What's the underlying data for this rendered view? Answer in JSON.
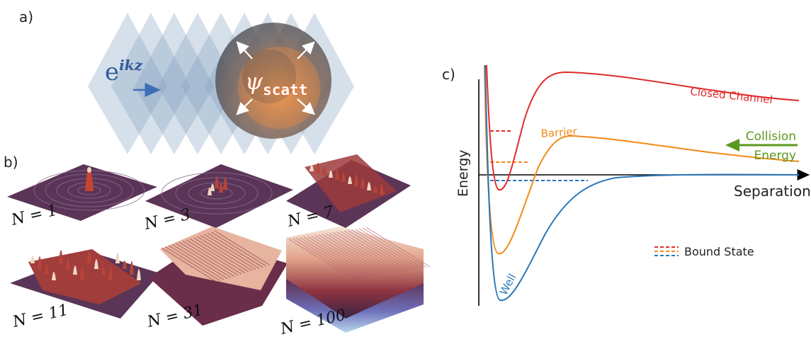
{
  "panel_a": {
    "label": "a)",
    "incoming_wave_label": "e",
    "incoming_wave_exponent": "ikz",
    "scattered_wave_label": "ψ",
    "scattered_wave_subscript": "scatt",
    "colors": {
      "planes": "#7f9fbd",
      "sphere_dark": "#4d4d52",
      "sphere_glow": "#f08a3c",
      "arrow_in": "#3d6fb6"
    }
  },
  "panel_b": {
    "label": "b)",
    "panels": [
      {
        "label": "N = 1"
      },
      {
        "label": "N = 3"
      },
      {
        "label": "N = 7"
      },
      {
        "label": "N = 11"
      },
      {
        "label": "N = 31"
      },
      {
        "label": "N = 100"
      }
    ],
    "colors": {
      "surface_dark": "#4a2a4d",
      "surface_mid": "#9c3b3a",
      "surface_light": "#f3d9cc"
    }
  },
  "panel_c": {
    "label": "c)",
    "y_axis_label": "Energy",
    "x_axis_label": "Separation",
    "curves": [
      {
        "name": "Closed Channel",
        "color": "#e02b2b"
      },
      {
        "name": "Barrier",
        "color": "#f28a17"
      },
      {
        "name": "Well",
        "color": "#2a76b8"
      }
    ],
    "collision_label_1": "Collision",
    "collision_label_2": "Energy",
    "collision_color": "#5a9a1c",
    "legend_label": "Bound State"
  }
}
